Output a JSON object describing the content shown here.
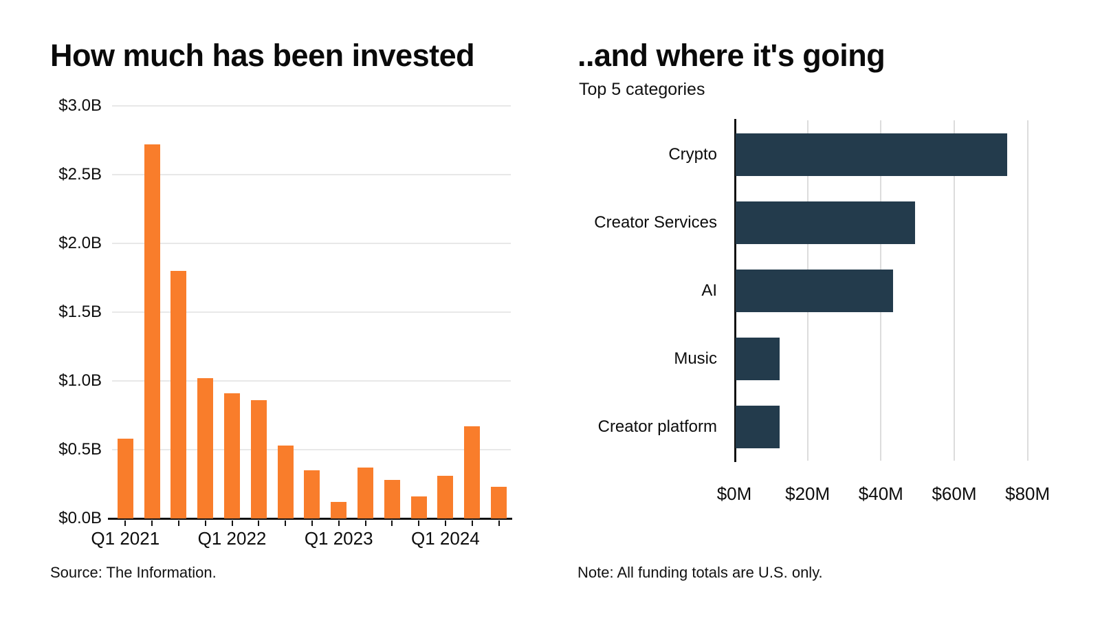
{
  "colors": {
    "left_bar": "#F97D2B",
    "right_bar": "#233B4C",
    "gridline": "#e8e8e8",
    "axis": "#111111",
    "text": "#0d0d0d"
  },
  "chart_data": [
    {
      "type": "bar",
      "orientation": "vertical",
      "title": "How much has been invested",
      "source": "Source: The Information.",
      "unit": "billions USD",
      "categories": [
        "Q1 2021",
        "Q2 2021",
        "Q3 2021",
        "Q4 2021",
        "Q1 2022",
        "Q2 2022",
        "Q3 2022",
        "Q4 2022",
        "Q1 2023",
        "Q2 2023",
        "Q3 2023",
        "Q4 2023",
        "Q1 2024",
        "Q2 2024",
        "Q3 2024"
      ],
      "values": [
        0.58,
        2.72,
        1.8,
        1.02,
        0.91,
        0.86,
        0.53,
        0.35,
        0.12,
        0.37,
        0.28,
        0.16,
        0.31,
        0.67,
        0.23
      ],
      "ylim": [
        0,
        3.0
      ],
      "ytick_values": [
        0,
        0.5,
        1.0,
        1.5,
        2.0,
        2.5,
        3.0
      ],
      "ytick_labels": [
        "$0.0B",
        "$0.5B",
        "$1.0B",
        "$1.5B",
        "$2.0B",
        "$2.5B",
        "$3.0B"
      ],
      "xtick_indices": [
        0,
        4,
        8,
        12
      ],
      "xtick_labels": [
        "Q1 2021",
        "Q1 2022",
        "Q1 2023",
        "Q1 2024"
      ],
      "grid": true,
      "legend": "none",
      "bar_color": "#F97D2B"
    },
    {
      "type": "bar",
      "orientation": "horizontal",
      "title": "..and where it's going",
      "subtitle": "Top 5 categories",
      "note": "Note: All funding totals are U.S. only.",
      "unit": "millions USD",
      "categories": [
        "Crypto",
        "Creator Services",
        "AI",
        "Music",
        "Creator platform"
      ],
      "values": [
        74,
        49,
        43,
        12,
        12
      ],
      "xlim": [
        0,
        90
      ],
      "xtick_values": [
        0,
        20,
        40,
        60,
        80
      ],
      "xtick_labels": [
        "$0M",
        "$20M",
        "$40M",
        "$60M",
        "$80M"
      ],
      "grid": true,
      "legend": "none",
      "bar_color": "#233B4C"
    }
  ]
}
